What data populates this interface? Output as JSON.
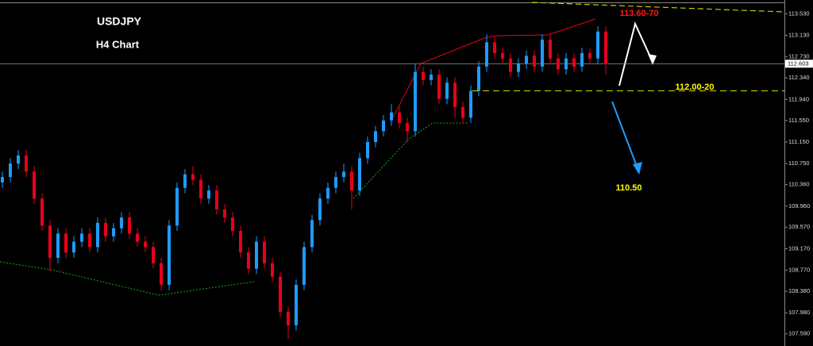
{
  "chart_data": {
    "type": "candlestick",
    "title": "USDJPY",
    "subtitle": "H4 Chart",
    "up_color": "#1e9bff",
    "down_color": "#e8001c",
    "open": [
      110.4,
      110.5,
      110.75,
      110.9,
      110.6,
      110.1,
      109.6,
      109.0,
      109.45,
      109.1,
      109.3,
      109.45,
      109.2,
      109.65,
      109.4,
      109.55,
      109.75,
      109.45,
      109.3,
      109.2,
      108.9,
      108.5,
      109.6,
      110.3,
      110.55,
      110.45,
      110.1,
      110.25,
      109.9,
      109.75,
      109.5,
      109.1,
      108.8,
      109.3,
      108.9,
      108.65,
      108.0,
      107.75,
      108.5,
      109.2,
      109.7,
      110.1,
      110.3,
      110.5,
      110.6,
      110.25,
      110.85,
      111.15,
      111.35,
      111.55,
      111.7,
      111.5,
      111.35,
      112.45,
      112.3,
      112.4,
      111.95,
      112.25,
      111.8,
      111.6,
      112.1,
      112.55,
      113.0,
      112.8,
      112.7,
      112.45,
      112.6,
      112.75,
      112.55,
      113.05,
      112.7,
      112.5,
      112.7,
      112.55,
      112.8,
      112.7,
      113.2
    ],
    "high": [
      110.6,
      110.85,
      111.0,
      111.0,
      110.7,
      110.2,
      109.7,
      109.55,
      109.55,
      109.4,
      109.55,
      109.55,
      109.75,
      109.75,
      109.65,
      109.85,
      109.85,
      109.55,
      109.4,
      109.3,
      109.0,
      109.7,
      110.4,
      110.65,
      110.7,
      110.55,
      110.35,
      110.35,
      110.0,
      109.85,
      109.6,
      109.2,
      109.4,
      109.4,
      109.0,
      108.75,
      108.1,
      108.6,
      109.3,
      109.8,
      110.2,
      110.4,
      110.6,
      110.75,
      110.7,
      110.95,
      111.25,
      111.45,
      111.65,
      111.85,
      111.8,
      111.6,
      112.6,
      112.55,
      112.5,
      112.5,
      112.35,
      112.35,
      111.9,
      112.2,
      112.65,
      113.15,
      113.1,
      112.9,
      112.8,
      112.7,
      112.85,
      112.85,
      113.15,
      113.15,
      112.8,
      112.8,
      112.8,
      112.9,
      112.9,
      113.3,
      113.3
    ],
    "low": [
      110.3,
      110.4,
      110.65,
      110.5,
      110.0,
      109.5,
      108.75,
      108.9,
      109.0,
      109.0,
      109.2,
      109.1,
      109.1,
      109.3,
      109.3,
      109.45,
      109.35,
      109.2,
      109.1,
      108.8,
      108.4,
      108.4,
      109.5,
      110.2,
      110.35,
      110.0,
      110.0,
      109.8,
      109.65,
      109.4,
      109.0,
      108.7,
      108.7,
      108.8,
      108.55,
      107.9,
      107.5,
      107.65,
      108.4,
      109.1,
      109.6,
      110.0,
      110.2,
      110.4,
      109.9,
      110.15,
      110.75,
      111.05,
      111.25,
      111.45,
      111.4,
      111.15,
      111.25,
      112.2,
      112.2,
      111.85,
      111.85,
      111.6,
      111.5,
      111.5,
      112.0,
      112.45,
      112.7,
      112.6,
      112.35,
      112.35,
      112.5,
      112.45,
      112.45,
      112.6,
      112.4,
      112.4,
      112.45,
      112.45,
      112.6,
      112.6,
      112.4
    ],
    "close": [
      110.5,
      110.75,
      110.9,
      110.6,
      110.1,
      109.6,
      109.0,
      109.45,
      109.1,
      109.3,
      109.45,
      109.2,
      109.65,
      109.4,
      109.55,
      109.75,
      109.45,
      109.3,
      109.2,
      108.9,
      108.5,
      109.6,
      110.3,
      110.55,
      110.45,
      110.1,
      110.25,
      109.9,
      109.75,
      109.5,
      109.1,
      108.8,
      109.3,
      108.9,
      108.65,
      108.0,
      107.75,
      108.5,
      109.2,
      109.7,
      110.1,
      110.3,
      110.5,
      110.6,
      110.25,
      110.85,
      111.15,
      111.35,
      111.55,
      111.7,
      111.5,
      111.35,
      112.45,
      112.3,
      112.4,
      111.95,
      112.25,
      111.8,
      111.6,
      112.1,
      112.55,
      113.0,
      112.8,
      112.7,
      112.45,
      112.6,
      112.75,
      112.55,
      113.05,
      112.7,
      112.5,
      112.7,
      112.55,
      112.8,
      112.7,
      113.2,
      112.6
    ],
    "last_price": 112.603,
    "ylim": [
      107.365,
      113.785
    ],
    "yticks": [
      {
        "value": 113.53,
        "label": "113.530"
      },
      {
        "value": 113.13,
        "label": "113.130"
      },
      {
        "value": 112.73,
        "label": "112.730"
      },
      {
        "value": 112.34,
        "label": "112.340"
      },
      {
        "value": 111.94,
        "label": "111.940"
      },
      {
        "value": 111.55,
        "label": "111.550"
      },
      {
        "value": 111.15,
        "label": "111.150"
      },
      {
        "value": 110.75,
        "label": "110.750"
      },
      {
        "value": 110.36,
        "label": "110.360"
      },
      {
        "value": 109.96,
        "label": "109.960"
      },
      {
        "value": 109.57,
        "label": "109.570"
      },
      {
        "value": 109.17,
        "label": "109.170"
      },
      {
        "value": 108.77,
        "label": "108.770"
      },
      {
        "value": 108.38,
        "label": "108.380"
      },
      {
        "value": 107.98,
        "label": "107.980"
      },
      {
        "value": 107.59,
        "label": "107.590"
      }
    ],
    "annotations": [
      {
        "text": "113.60-70",
        "color": "#ff1a1a"
      },
      {
        "text": "112.00-20",
        "color": "#ffff00",
        "value": 112.1
      },
      {
        "text": "110.50",
        "color": "#ffff00"
      }
    ]
  }
}
